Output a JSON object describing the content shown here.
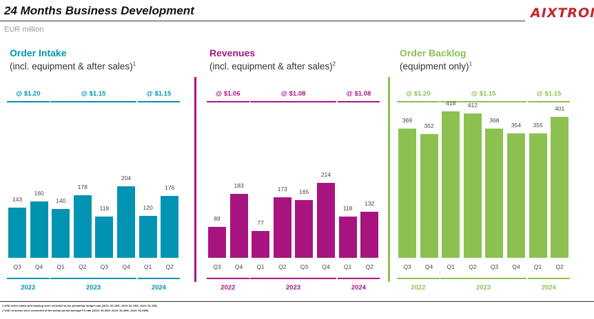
{
  "header": {
    "title": "24 Months Business Development",
    "logo": "AIXTRON",
    "unit": "EUR million"
  },
  "colors": {
    "order_intake": "#0093b2",
    "revenues": "#a8147f",
    "order_backlog": "#8cc152"
  },
  "chart_data": [
    {
      "type": "bar",
      "title": "Order Intake",
      "subtitle": "(incl. equipment & after sales)",
      "footnote_marker": "1",
      "categories": [
        "Q3",
        "Q4",
        "Q1",
        "Q2",
        "Q3",
        "Q4",
        "Q1",
        "Q2"
      ],
      "values": [
        143,
        160,
        140,
        178,
        118,
        204,
        120,
        176
      ],
      "years": [
        "2022",
        "2023",
        "2024"
      ],
      "fx_rates": [
        "@ $1.20",
        "@ $1.15",
        "@ $1.15"
      ],
      "ylim": [
        0,
        420
      ]
    },
    {
      "type": "bar",
      "title": "Revenues",
      "subtitle": "(incl. equipment & after sales)",
      "footnote_marker": "2",
      "categories": [
        "Q3",
        "Q4",
        "Q1",
        "Q2",
        "Q3",
        "Q4",
        "Q1",
        "Q2"
      ],
      "values": [
        89,
        183,
        77,
        173,
        165,
        214,
        118,
        132
      ],
      "years": [
        "2022",
        "2023",
        "2024"
      ],
      "fx_rates": [
        "@ $1.06",
        "@ $1.08",
        "@ $1.08"
      ],
      "ylim": [
        0,
        420
      ]
    },
    {
      "type": "bar",
      "title": "Order Backlog",
      "subtitle": "(equipment only)",
      "footnote_marker": "1",
      "categories": [
        "Q3",
        "Q4",
        "Q1",
        "Q2",
        "Q3",
        "Q4",
        "Q1",
        "Q2"
      ],
      "values": [
        369,
        352,
        418,
        412,
        368,
        354,
        355,
        401
      ],
      "years": [
        "2022",
        "2023",
        "2024"
      ],
      "fx_rates": [
        "@ $1.20",
        "@ $1.15",
        "@ $1.15"
      ],
      "ylim": [
        0,
        420
      ]
    }
  ],
  "footnotes": [
    "1 USD order intake and backlog were recorded at the prevailing budget rate (2022: $1.20/€; 2023: $1.15/€; 2024: $1.15€)",
    "2 USD revenues were converted at the actual period average FX rate (2022: $1.06/€; 2023: $1.08/€; 2024: $1.08/€)"
  ]
}
